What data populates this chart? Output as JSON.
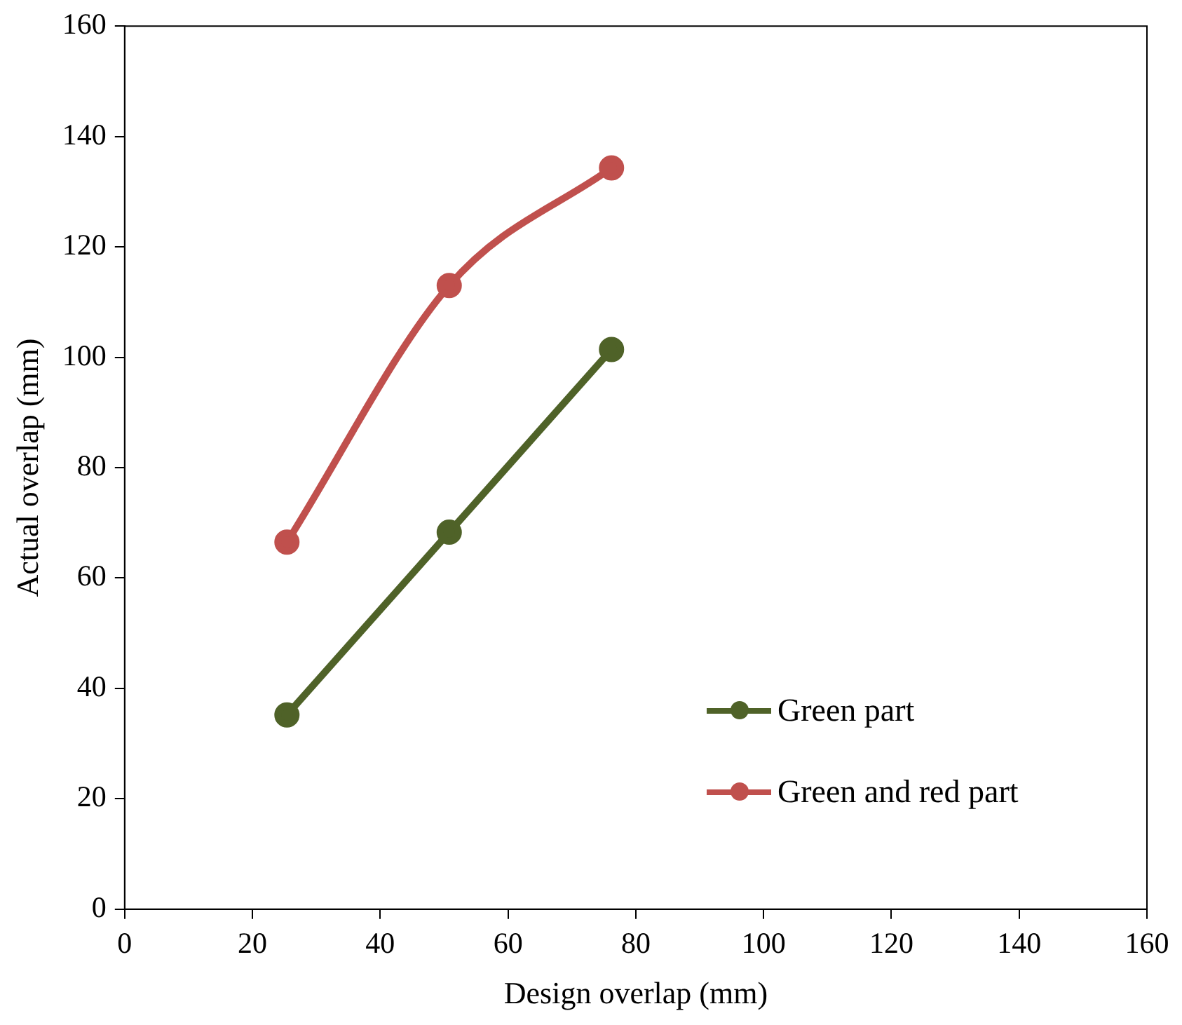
{
  "chart_data": {
    "type": "line",
    "xlabel": "Design overlap (mm)",
    "ylabel": "Actual overlap (mm)",
    "x": [
      25.4,
      50.8,
      76.2
    ],
    "series": [
      {
        "name": "Green part",
        "color": "#4f6228",
        "values": [
          35.2,
          68.3,
          101.4
        ]
      },
      {
        "name": "Green and red part",
        "color": "#c0504d",
        "values": [
          66.5,
          113,
          134.3
        ]
      }
    ],
    "xlim": [
      0,
      160
    ],
    "xticks": [
      0,
      20,
      40,
      60,
      80,
      100,
      120,
      140,
      160
    ],
    "ylim": [
      0,
      160
    ],
    "yticks": [
      0,
      20,
      40,
      60,
      80,
      100,
      120,
      140,
      160
    ],
    "grid": false,
    "legend": "right",
    "marker": "circle",
    "line_style": "solid"
  }
}
